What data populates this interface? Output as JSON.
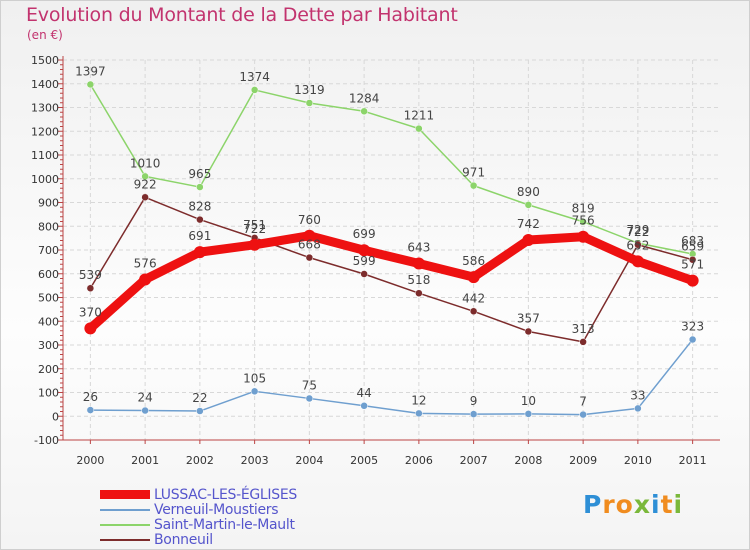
{
  "title": "Evolution du Montant de la Dette par Habitant",
  "unit": "(en €)",
  "logo": {
    "letters": [
      "P",
      "r",
      "o",
      "x",
      "i",
      "t",
      "i"
    ],
    "colors": [
      "#2e8fd6",
      "#f08c1f",
      "#f08c1f",
      "#7ab83a",
      "#2e8fd6",
      "#f08c1f",
      "#7ab83a"
    ]
  },
  "chart_data": {
    "type": "line",
    "x": [
      "2000",
      "2001",
      "2002",
      "2003",
      "2004",
      "2005",
      "2006",
      "2007",
      "2008",
      "2009",
      "2010",
      "2011"
    ],
    "ylim": [
      -100,
      1500
    ],
    "yticks": [
      "-100",
      "0",
      "100",
      "200",
      "300",
      "400",
      "500",
      "600",
      "700",
      "800",
      "900",
      "1000",
      "1100",
      "1200",
      "1300",
      "1400",
      "1500"
    ],
    "grid": true,
    "legend_position": "bottom-left",
    "series": [
      {
        "name": "LUSSAC-LES-ÉGLISES",
        "color": "#ee1111",
        "values": [
          370,
          576,
          691,
          722,
          760,
          699,
          643,
          586,
          742,
          756,
          652,
          571
        ],
        "labels": [
          "370",
          "576",
          "691",
          "722",
          "760",
          "699",
          "643",
          "586",
          "742",
          "756",
          "652",
          "571"
        ]
      },
      {
        "name": "Verneuil-Moustiers",
        "color": "#6f9fcf",
        "values": [
          26,
          24,
          22,
          105,
          75,
          44,
          12,
          9,
          10,
          7,
          33,
          323
        ],
        "labels": [
          "26",
          "24",
          "22",
          "105",
          "75",
          "44",
          "12",
          "9",
          "10",
          "7",
          "33",
          "323"
        ]
      },
      {
        "name": "Saint-Martin-le-Mault",
        "color": "#8cd46a",
        "values": [
          1397,
          1010,
          965,
          1374,
          1319,
          1284,
          1211,
          971,
          890,
          819,
          729,
          683
        ],
        "labels": [
          "1397",
          "1010",
          "965",
          "1374",
          "1319",
          "1284",
          "1211",
          "971",
          "890",
          "819",
          "729",
          "683"
        ]
      },
      {
        "name": "Bonneuil",
        "color": "#7d2c2c",
        "values": [
          539,
          922,
          828,
          751,
          668,
          599,
          518,
          442,
          357,
          313,
          722,
          659
        ],
        "labels": [
          "539",
          "922",
          "828",
          "751",
          "668",
          "599",
          "518",
          "442",
          "357",
          "313",
          "722",
          "659"
        ]
      }
    ]
  }
}
